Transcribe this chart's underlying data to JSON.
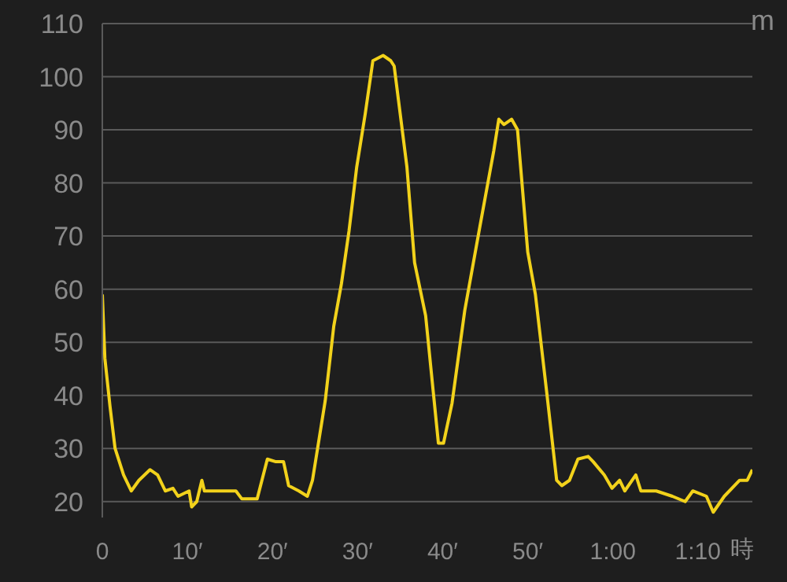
{
  "chart_data": {
    "type": "line",
    "xlabel": "時",
    "ylabel": "m",
    "x": [
      0,
      0.3,
      0.9,
      1.5,
      2.5,
      3.4,
      4.3,
      5.6,
      6.5,
      7.4,
      8.3,
      8.9,
      10.2,
      10.5,
      11.1,
      11.7,
      12,
      15.7,
      16.4,
      18.2,
      19.4,
      20.4,
      21.3,
      21.9,
      23.1,
      24.1,
      24.7,
      25.3,
      26.2,
      27.2,
      28.1,
      29,
      29.9,
      30.9,
      31.8,
      33,
      33.9,
      34.3,
      35.8,
      36.7,
      38,
      39.5,
      40.1,
      41.1,
      42.6,
      44.4,
      46,
      46.6,
      47.2,
      48.1,
      48.8,
      50,
      50.9,
      52.2,
      53.4,
      54,
      54.9,
      55.9,
      57.1,
      57.7,
      59,
      59.9,
      60.8,
      61.4,
      62.7,
      63.3,
      65.1,
      67,
      68.5,
      69.4,
      71,
      71.8,
      73.1,
      74.9,
      75.8,
      76.4
    ],
    "series": [
      {
        "color": "#f2d21b",
        "values": [
          59,
          47,
          38,
          30,
          25,
          22,
          24,
          26,
          25,
          22,
          22.5,
          21,
          22,
          19,
          20,
          24,
          22,
          22,
          20.5,
          20.5,
          28,
          27.5,
          27.5,
          23,
          22,
          21,
          24,
          30,
          39,
          53,
          61,
          71,
          83,
          93,
          103,
          104,
          103,
          102,
          83,
          65,
          55,
          31,
          31,
          38.5,
          56,
          72,
          86,
          92,
          91,
          92,
          90,
          67,
          59,
          41,
          24,
          23,
          24,
          28,
          28.5,
          27.5,
          25,
          22.5,
          24,
          22,
          25,
          22,
          22,
          21,
          20,
          22,
          21,
          18,
          21,
          24,
          24,
          26
        ]
      }
    ],
    "xlim": [
      0,
      76.4
    ],
    "xticks": [
      {
        "value": 0,
        "label": "0"
      },
      {
        "value": 10,
        "label": "10′"
      },
      {
        "value": 20,
        "label": "20′"
      },
      {
        "value": 30,
        "label": "30′"
      },
      {
        "value": 40,
        "label": "40′"
      },
      {
        "value": 50,
        "label": "50′"
      },
      {
        "value": 60,
        "label": "1:00"
      },
      {
        "value": 70,
        "label": "1:10"
      }
    ],
    "ylim": [
      17,
      110
    ],
    "yticks": [
      20,
      30,
      40,
      50,
      60,
      70,
      80,
      90,
      100,
      110
    ],
    "grid": "y",
    "legend": false,
    "marker": "none",
    "line_style": "solid"
  }
}
